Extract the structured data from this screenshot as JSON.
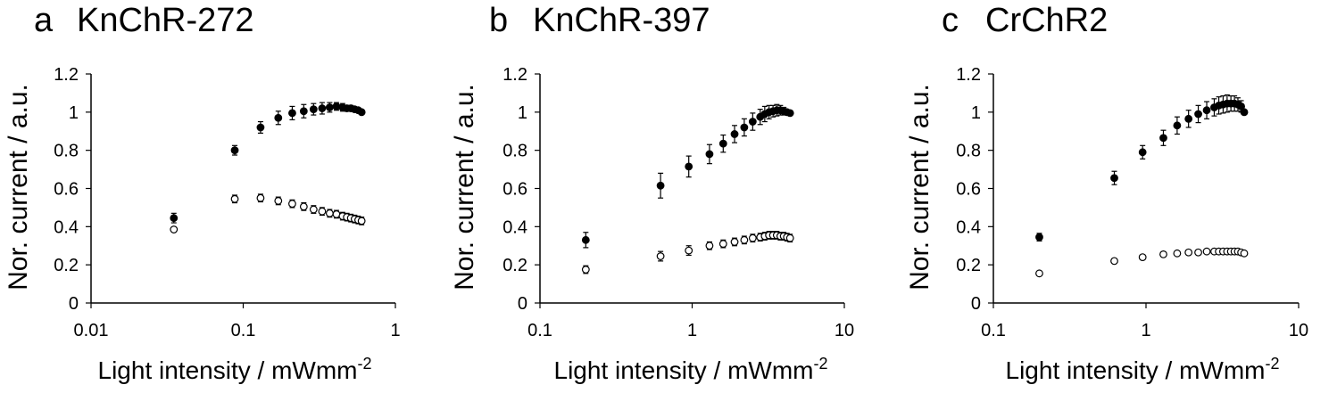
{
  "chart_data": [
    {
      "type": "scatter",
      "panel_label": "a",
      "title": "KnChR-272",
      "xlabel": "Light intensity / mWmm",
      "xlabel_sup": "-2",
      "ylabel": "Nor. current / a.u.",
      "xscale": "log",
      "xlim": [
        0.01,
        1
      ],
      "ylim": [
        0,
        1.2
      ],
      "xticks": [
        0.01,
        0.1,
        1
      ],
      "xtick_labels": [
        "0.01",
        "0.1",
        "1"
      ],
      "yticks": [
        0,
        0.2,
        0.4,
        0.6,
        0.8,
        1,
        1.2
      ],
      "ytick_labels": [
        "0",
        "0.2",
        "0.4",
        "0.6",
        "0.8",
        "1",
        "1.2"
      ],
      "grid": false,
      "series": [
        {
          "marker": "filled-circle",
          "points": [
            {
              "x": 0.035,
              "y": 0.445,
              "err": 0.025
            },
            {
              "x": 0.088,
              "y": 0.8,
              "err": 0.025
            },
            {
              "x": 0.13,
              "y": 0.92,
              "err": 0.03
            },
            {
              "x": 0.17,
              "y": 0.97,
              "err": 0.035
            },
            {
              "x": 0.21,
              "y": 0.995,
              "err": 0.035
            },
            {
              "x": 0.25,
              "y": 1.005,
              "err": 0.035
            },
            {
              "x": 0.29,
              "y": 1.015,
              "err": 0.03
            },
            {
              "x": 0.33,
              "y": 1.02,
              "err": 0.03
            },
            {
              "x": 0.37,
              "y": 1.025,
              "err": 0.025
            },
            {
              "x": 0.41,
              "y": 1.03,
              "err": 0.02
            },
            {
              "x": 0.45,
              "y": 1.025,
              "err": 0.02
            },
            {
              "x": 0.48,
              "y": 1.02,
              "err": 0.015
            },
            {
              "x": 0.51,
              "y": 1.02,
              "err": 0.015
            },
            {
              "x": 0.54,
              "y": 1.015,
              "err": 0.01
            },
            {
              "x": 0.57,
              "y": 1.01,
              "err": 0.005
            },
            {
              "x": 0.6,
              "y": 1.0,
              "err": 0
            }
          ]
        },
        {
          "marker": "open-circle",
          "points": [
            {
              "x": 0.035,
              "y": 0.385,
              "err": 0.01
            },
            {
              "x": 0.088,
              "y": 0.545,
              "err": 0.02
            },
            {
              "x": 0.13,
              "y": 0.55,
              "err": 0.02
            },
            {
              "x": 0.17,
              "y": 0.535,
              "err": 0.02
            },
            {
              "x": 0.21,
              "y": 0.52,
              "err": 0.02
            },
            {
              "x": 0.25,
              "y": 0.505,
              "err": 0.02
            },
            {
              "x": 0.29,
              "y": 0.49,
              "err": 0.02
            },
            {
              "x": 0.33,
              "y": 0.48,
              "err": 0.02
            },
            {
              "x": 0.37,
              "y": 0.47,
              "err": 0.02
            },
            {
              "x": 0.41,
              "y": 0.465,
              "err": 0.02
            },
            {
              "x": 0.45,
              "y": 0.455,
              "err": 0.02
            },
            {
              "x": 0.48,
              "y": 0.45,
              "err": 0.02
            },
            {
              "x": 0.51,
              "y": 0.445,
              "err": 0.02
            },
            {
              "x": 0.54,
              "y": 0.44,
              "err": 0.02
            },
            {
              "x": 0.57,
              "y": 0.435,
              "err": 0.02
            },
            {
              "x": 0.6,
              "y": 0.43,
              "err": 0.02
            }
          ]
        }
      ]
    },
    {
      "type": "scatter",
      "panel_label": "b",
      "title": "KnChR-397",
      "xlabel": "Light intensity / mWmm",
      "xlabel_sup": "-2",
      "ylabel": "Nor. current / a.u.",
      "xscale": "log",
      "xlim": [
        0.1,
        10
      ],
      "ylim": [
        0,
        1.2
      ],
      "xticks": [
        0.1,
        1,
        10
      ],
      "xtick_labels": [
        "0.1",
        "1",
        "10"
      ],
      "yticks": [
        0,
        0.2,
        0.4,
        0.6,
        0.8,
        1,
        1.2
      ],
      "ytick_labels": [
        "0",
        "0.2",
        "0.4",
        "0.6",
        "0.8",
        "1",
        "1.2"
      ],
      "grid": false,
      "series": [
        {
          "marker": "filled-circle",
          "points": [
            {
              "x": 0.2,
              "y": 0.33,
              "err": 0.04
            },
            {
              "x": 0.62,
              "y": 0.615,
              "err": 0.065
            },
            {
              "x": 0.95,
              "y": 0.715,
              "err": 0.055
            },
            {
              "x": 1.3,
              "y": 0.78,
              "err": 0.05
            },
            {
              "x": 1.6,
              "y": 0.835,
              "err": 0.045
            },
            {
              "x": 1.9,
              "y": 0.885,
              "err": 0.045
            },
            {
              "x": 2.2,
              "y": 0.92,
              "err": 0.045
            },
            {
              "x": 2.5,
              "y": 0.95,
              "err": 0.045
            },
            {
              "x": 2.8,
              "y": 0.975,
              "err": 0.04
            },
            {
              "x": 3.0,
              "y": 0.99,
              "err": 0.04
            },
            {
              "x": 3.2,
              "y": 1.0,
              "err": 0.035
            },
            {
              "x": 3.4,
              "y": 1.005,
              "err": 0.03
            },
            {
              "x": 3.6,
              "y": 1.01,
              "err": 0.03
            },
            {
              "x": 3.8,
              "y": 1.01,
              "err": 0.025
            },
            {
              "x": 4.0,
              "y": 1.005,
              "err": 0.02
            },
            {
              "x": 4.2,
              "y": 1.0,
              "err": 0.01
            },
            {
              "x": 4.4,
              "y": 0.995,
              "err": 0
            }
          ]
        },
        {
          "marker": "open-circle",
          "points": [
            {
              "x": 0.2,
              "y": 0.175,
              "err": 0.02
            },
            {
              "x": 0.62,
              "y": 0.245,
              "err": 0.025
            },
            {
              "x": 0.95,
              "y": 0.275,
              "err": 0.025
            },
            {
              "x": 1.3,
              "y": 0.3,
              "err": 0.02
            },
            {
              "x": 1.6,
              "y": 0.31,
              "err": 0.02
            },
            {
              "x": 1.9,
              "y": 0.32,
              "err": 0.02
            },
            {
              "x": 2.2,
              "y": 0.33,
              "err": 0.02
            },
            {
              "x": 2.5,
              "y": 0.34,
              "err": 0.02
            },
            {
              "x": 2.8,
              "y": 0.345,
              "err": 0.02
            },
            {
              "x": 3.0,
              "y": 0.35,
              "err": 0.02
            },
            {
              "x": 3.2,
              "y": 0.355,
              "err": 0.02
            },
            {
              "x": 3.4,
              "y": 0.355,
              "err": 0.02
            },
            {
              "x": 3.6,
              "y": 0.355,
              "err": 0.02
            },
            {
              "x": 3.8,
              "y": 0.35,
              "err": 0.02
            },
            {
              "x": 4.0,
              "y": 0.35,
              "err": 0.02
            },
            {
              "x": 4.2,
              "y": 0.345,
              "err": 0.02
            },
            {
              "x": 4.4,
              "y": 0.34,
              "err": 0.02
            }
          ]
        }
      ]
    },
    {
      "type": "scatter",
      "panel_label": "c",
      "title": "CrChR2",
      "xlabel": "Light intensity / mWmm",
      "xlabel_sup": "-2",
      "ylabel": "Nor. current / a.u.",
      "xscale": "log",
      "xlim": [
        0.1,
        10
      ],
      "ylim": [
        0,
        1.2
      ],
      "xticks": [
        0.1,
        1,
        10
      ],
      "xtick_labels": [
        "0.1",
        "1",
        "10"
      ],
      "yticks": [
        0,
        0.2,
        0.4,
        0.6,
        0.8,
        1,
        1.2
      ],
      "ytick_labels": [
        "0",
        "0.2",
        "0.4",
        "0.6",
        "0.8",
        "1",
        "1.2"
      ],
      "grid": false,
      "series": [
        {
          "marker": "filled-circle",
          "points": [
            {
              "x": 0.2,
              "y": 0.345,
              "err": 0.02
            },
            {
              "x": 0.62,
              "y": 0.655,
              "err": 0.035
            },
            {
              "x": 0.95,
              "y": 0.79,
              "err": 0.035
            },
            {
              "x": 1.3,
              "y": 0.865,
              "err": 0.04
            },
            {
              "x": 1.6,
              "y": 0.93,
              "err": 0.045
            },
            {
              "x": 1.9,
              "y": 0.965,
              "err": 0.045
            },
            {
              "x": 2.2,
              "y": 0.99,
              "err": 0.045
            },
            {
              "x": 2.5,
              "y": 1.01,
              "err": 0.045
            },
            {
              "x": 2.8,
              "y": 1.025,
              "err": 0.045
            },
            {
              "x": 3.0,
              "y": 1.035,
              "err": 0.045
            },
            {
              "x": 3.2,
              "y": 1.04,
              "err": 0.045
            },
            {
              "x": 3.4,
              "y": 1.045,
              "err": 0.045
            },
            {
              "x": 3.6,
              "y": 1.045,
              "err": 0.04
            },
            {
              "x": 3.8,
              "y": 1.045,
              "err": 0.04
            },
            {
              "x": 4.0,
              "y": 1.04,
              "err": 0.035
            },
            {
              "x": 4.2,
              "y": 1.03,
              "err": 0.03
            },
            {
              "x": 4.4,
              "y": 1.0,
              "err": 0
            }
          ]
        },
        {
          "marker": "open-circle",
          "points": [
            {
              "x": 0.2,
              "y": 0.155,
              "err": 0.005
            },
            {
              "x": 0.62,
              "y": 0.22,
              "err": 0.01
            },
            {
              "x": 0.95,
              "y": 0.24,
              "err": 0.008
            },
            {
              "x": 1.3,
              "y": 0.255,
              "err": 0.008
            },
            {
              "x": 1.6,
              "y": 0.26,
              "err": 0.008
            },
            {
              "x": 1.9,
              "y": 0.265,
              "err": 0.008
            },
            {
              "x": 2.2,
              "y": 0.265,
              "err": 0.008
            },
            {
              "x": 2.5,
              "y": 0.27,
              "err": 0.008
            },
            {
              "x": 2.8,
              "y": 0.27,
              "err": 0.008
            },
            {
              "x": 3.0,
              "y": 0.27,
              "err": 0.008
            },
            {
              "x": 3.2,
              "y": 0.27,
              "err": 0.008
            },
            {
              "x": 3.4,
              "y": 0.27,
              "err": 0.008
            },
            {
              "x": 3.6,
              "y": 0.27,
              "err": 0.008
            },
            {
              "x": 3.8,
              "y": 0.27,
              "err": 0.008
            },
            {
              "x": 4.0,
              "y": 0.27,
              "err": 0.008
            },
            {
              "x": 4.2,
              "y": 0.265,
              "err": 0.008
            },
            {
              "x": 4.4,
              "y": 0.26,
              "err": 0.008
            }
          ]
        }
      ]
    }
  ]
}
